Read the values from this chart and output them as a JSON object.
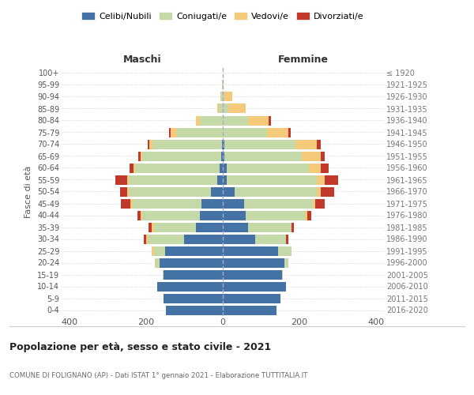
{
  "age_groups": [
    "0-4",
    "5-9",
    "10-14",
    "15-19",
    "20-24",
    "25-29",
    "30-34",
    "35-39",
    "40-44",
    "45-49",
    "50-54",
    "55-59",
    "60-64",
    "65-69",
    "70-74",
    "75-79",
    "80-84",
    "85-89",
    "90-94",
    "95-99",
    "100+"
  ],
  "birth_years": [
    "2016-2020",
    "2011-2015",
    "2006-2010",
    "2001-2005",
    "1996-2000",
    "1991-1995",
    "1986-1990",
    "1981-1985",
    "1976-1980",
    "1971-1975",
    "1966-1970",
    "1961-1965",
    "1956-1960",
    "1951-1955",
    "1946-1950",
    "1941-1945",
    "1936-1940",
    "1931-1935",
    "1926-1930",
    "1921-1925",
    "≤ 1920"
  ],
  "males": {
    "celibi": [
      148,
      155,
      170,
      155,
      165,
      150,
      100,
      70,
      60,
      55,
      30,
      15,
      8,
      5,
      3,
      0,
      0,
      0,
      0,
      0,
      0
    ],
    "coniugati": [
      0,
      0,
      0,
      2,
      10,
      30,
      95,
      110,
      150,
      180,
      215,
      230,
      220,
      205,
      180,
      120,
      60,
      10,
      4,
      2,
      0
    ],
    "vedovi": [
      0,
      0,
      0,
      0,
      3,
      5,
      5,
      5,
      5,
      5,
      5,
      5,
      5,
      5,
      8,
      15,
      10,
      5,
      2,
      0,
      0
    ],
    "divorziati": [
      0,
      0,
      0,
      0,
      0,
      0,
      5,
      8,
      8,
      25,
      18,
      30,
      10,
      5,
      5,
      5,
      0,
      0,
      0,
      0,
      0
    ]
  },
  "females": {
    "nubili": [
      140,
      150,
      165,
      155,
      160,
      145,
      85,
      65,
      60,
      55,
      30,
      10,
      10,
      5,
      5,
      0,
      0,
      0,
      0,
      0,
      0
    ],
    "coniugate": [
      0,
      0,
      0,
      2,
      10,
      35,
      80,
      115,
      155,
      180,
      215,
      235,
      215,
      200,
      185,
      115,
      65,
      15,
      5,
      1,
      0
    ],
    "vedove": [
      0,
      0,
      0,
      0,
      0,
      0,
      0,
      0,
      5,
      5,
      10,
      20,
      30,
      50,
      55,
      55,
      55,
      45,
      20,
      2,
      0
    ],
    "divorziate": [
      0,
      0,
      0,
      0,
      0,
      0,
      5,
      5,
      10,
      25,
      35,
      35,
      20,
      10,
      10,
      8,
      5,
      0,
      0,
      0,
      0
    ]
  },
  "colors": {
    "celibi": "#4472a4",
    "coniugati": "#c5d9a8",
    "vedovi": "#f5c97a",
    "divorziati": "#c0392b"
  },
  "xlim": 420,
  "title": "Popolazione per età, sesso e stato civile - 2021",
  "subtitle": "COMUNE DI FOLIGNANO (AP) - Dati ISTAT 1° gennaio 2021 - Elaborazione TUTTITALIA.IT",
  "ylabel_left": "Fasce di età",
  "xlabel_left": "Maschi",
  "xlabel_right": "Femmine",
  "legend_labels": [
    "Celibi/Nubili",
    "Coniugati/e",
    "Vedovi/e",
    "Divorziati/e"
  ],
  "background_color": "#ffffff"
}
